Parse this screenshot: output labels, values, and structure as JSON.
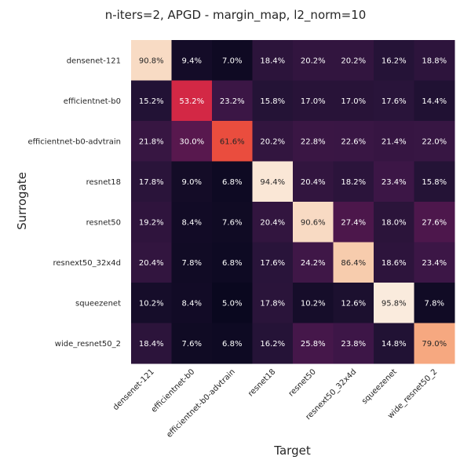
{
  "chart_data": {
    "type": "heatmap",
    "title": "n-iters=2, APGD - margin_map, l2_norm=10",
    "xlabel": "Target",
    "ylabel": "Surrogate",
    "rows": [
      "densenet-121",
      "efficientnet-b0",
      "efficientnet-b0-advtrain",
      "resnet18",
      "resnet50",
      "resnext50_32x4d",
      "squeezenet",
      "wide_resnet50_2"
    ],
    "columns": [
      "densenet-121",
      "efficientnet-b0",
      "efficientnet-b0-advtrain",
      "resnet18",
      "resnet50",
      "resnext50_32x4d",
      "squeezenet",
      "wide_resnet50_2"
    ],
    "values": [
      [
        90.8,
        9.4,
        7.0,
        18.4,
        20.2,
        20.2,
        16.2,
        18.8
      ],
      [
        15.2,
        53.2,
        23.2,
        15.8,
        17.0,
        17.0,
        17.6,
        14.4
      ],
      [
        21.8,
        30.0,
        61.6,
        20.2,
        22.8,
        22.6,
        21.4,
        22.0
      ],
      [
        17.8,
        9.0,
        6.8,
        94.4,
        20.4,
        18.2,
        23.4,
        15.8
      ],
      [
        19.2,
        8.4,
        7.6,
        20.4,
        90.6,
        27.4,
        18.0,
        27.6
      ],
      [
        20.4,
        7.8,
        6.8,
        17.6,
        24.2,
        86.4,
        18.6,
        23.4
      ],
      [
        10.2,
        8.4,
        5.0,
        17.8,
        10.2,
        12.6,
        95.8,
        7.8
      ],
      [
        18.4,
        7.6,
        6.8,
        16.2,
        25.8,
        23.8,
        14.8,
        79.0
      ]
    ],
    "labels": [
      [
        "90.8%",
        "9.4%",
        "7.0%",
        "18.4%",
        "20.2%",
        "20.2%",
        "16.2%",
        "18.8%"
      ],
      [
        "15.2%",
        "53.2%",
        "23.2%",
        "15.8%",
        "17.0%",
        "17.0%",
        "17.6%",
        "14.4%"
      ],
      [
        "21.8%",
        "30.0%",
        "61.6%",
        "20.2%",
        "22.8%",
        "22.6%",
        "21.4%",
        "22.0%"
      ],
      [
        "17.8%",
        "9.0%",
        "6.8%",
        "94.4%",
        "20.4%",
        "18.2%",
        "23.4%",
        "15.8%"
      ],
      [
        "19.2%",
        "8.4%",
        "7.6%",
        "20.4%",
        "90.6%",
        "27.4%",
        "18.0%",
        "27.6%"
      ],
      [
        "20.4%",
        "7.8%",
        "6.8%",
        "17.6%",
        "24.2%",
        "86.4%",
        "18.6%",
        "23.4%"
      ],
      [
        "10.2%",
        "8.4%",
        "5.0%",
        "17.8%",
        "10.2%",
        "12.6%",
        "95.8%",
        "7.8%"
      ],
      [
        "18.4%",
        "7.6%",
        "6.8%",
        "16.2%",
        "25.8%",
        "23.8%",
        "14.8%",
        "79.0%"
      ]
    ],
    "value_range": [
      5.0,
      95.8
    ],
    "colormap": "rocket",
    "grid": false,
    "legend": "none"
  }
}
